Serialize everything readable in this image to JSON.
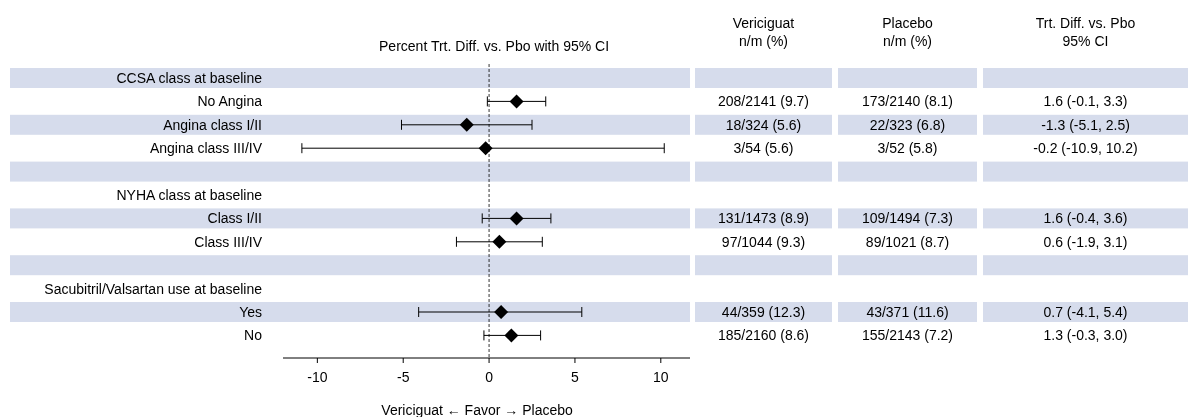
{
  "chart_data": {
    "type": "scatter",
    "orientation": "horizontal",
    "title": "Percent Trt. Diff. vs. Pbo with 95% CI",
    "xlabel": "Vericiguat ← Favor → Placebo",
    "categories": [
      "CCSA class at baseline",
      "No Angina",
      "Angina class I/II",
      "Angina class III/IV",
      null,
      "NYHA class at baseline",
      "Class I/II",
      "Class III/IV",
      null,
      "Sacubitril/Valsartan use at baseline",
      "Yes",
      "No"
    ],
    "values": [
      null,
      1.6,
      -1.3,
      -0.2,
      null,
      null,
      1.6,
      0.6,
      null,
      null,
      0.7,
      1.3
    ],
    "errors": [
      null,
      [
        -0.1,
        3.3
      ],
      [
        -5.1,
        2.5
      ],
      [
        -10.9,
        10.2
      ],
      null,
      null,
      [
        -0.4,
        3.6
      ],
      [
        -1.9,
        3.1
      ],
      null,
      null,
      [
        -4.1,
        5.4
      ],
      [
        -0.3,
        3.0
      ]
    ],
    "color": "#000000",
    "marker": "diamond",
    "xlim": [
      -12,
      11.7
    ],
    "xticks": [
      -10,
      -5,
      0,
      5,
      10
    ],
    "ref_lines": [
      {
        "axis": "x",
        "value": 0,
        "line_style": "dashed",
        "color": "#000000"
      }
    ],
    "annotations": [
      "Vericiguat\nn/m (%)",
      "Placebo\nn/m (%)",
      "Trt. Diff. vs. Pbo\n95% CI",
      "208/2141 (9.7)",
      "173/2140 (8.1)",
      "1.6 (-0.1, 3.3)",
      "18/324 (5.6)",
      "22/323 (6.8)",
      "-1.3 (-5.1, 2.5)",
      "3/54 (5.6)",
      "3/52 (5.8)",
      "-0.2 (-10.9, 10.2)",
      "131/1473 (8.9)",
      "109/1494 (7.3)",
      "1.6 (-0.4, 3.6)",
      "97/1044 (9.3)",
      "89/1021 (8.7)",
      "0.6 (-1.9, 3.1)",
      "44/359 (12.3)",
      "43/371 (11.6)",
      "0.7 (-4.1, 5.4)",
      "185/2160 (8.6)",
      "155/2143 (7.2)",
      "1.3 (-0.3, 3.0)"
    ]
  }
}
